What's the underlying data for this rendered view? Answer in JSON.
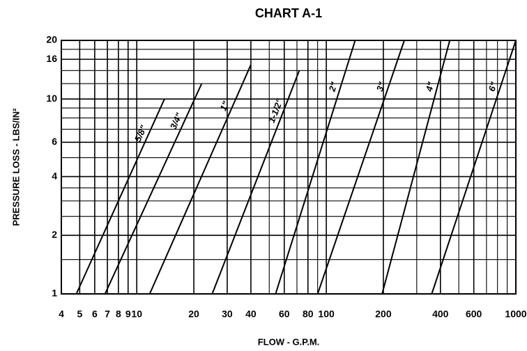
{
  "chart_data": {
    "type": "line",
    "title": "CHART A-1",
    "xlabel": "FLOW - G.P.M.",
    "ylabel": "PRESSURE LOSS - LBS/IN²",
    "xscale": "log",
    "yscale": "log",
    "grid": true,
    "xlim": [
      4,
      1000
    ],
    "ylim": [
      1,
      20
    ],
    "xticks": [
      4,
      5,
      6,
      7,
      8,
      9,
      10,
      20,
      30,
      40,
      60,
      80,
      100,
      200,
      400,
      600,
      1000
    ],
    "xminor": [
      50,
      70,
      90,
      300,
      500,
      700,
      800,
      900
    ],
    "yticks": [
      1,
      2,
      4,
      6,
      10,
      16,
      20
    ],
    "yminor": [
      1.5,
      2.5,
      3,
      3.5,
      5,
      7,
      8,
      9,
      12,
      14,
      18
    ],
    "series": [
      {
        "name": "5/8\"",
        "color": "#000000",
        "x": [
          4.8,
          14
        ],
        "values": [
          1,
          10
        ]
      },
      {
        "name": "3/4\"",
        "color": "#000000",
        "x": [
          6.8,
          22
        ],
        "values": [
          1,
          12
        ]
      },
      {
        "name": "1\"",
        "color": "#000000",
        "x": [
          11.7,
          40
        ],
        "values": [
          1,
          15
        ]
      },
      {
        "name": "1-1/2\"",
        "color": "#000000",
        "x": [
          25,
          72
        ],
        "values": [
          1,
          14
        ]
      },
      {
        "name": "2\"",
        "color": "#000000",
        "x": [
          54,
          142
        ],
        "values": [
          1,
          20
        ]
      },
      {
        "name": "3\"",
        "color": "#000000",
        "x": [
          90,
          258
        ],
        "values": [
          1,
          20
        ]
      },
      {
        "name": "4\"",
        "color": "#000000",
        "x": [
          197,
          448
        ],
        "values": [
          1,
          20
        ]
      },
      {
        "name": "6\"",
        "color": "#000000",
        "x": [
          360,
          1000
        ],
        "values": [
          1,
          20
        ]
      }
    ]
  }
}
